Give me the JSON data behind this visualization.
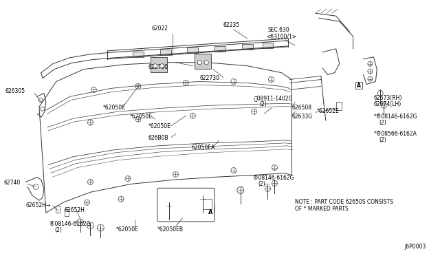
{
  "bg_color": "#ffffff",
  "line_color": "#333333",
  "text_color": "#000000",
  "fig_width": 6.4,
  "fig_height": 3.72,
  "diagram_id": "J6P0003",
  "note_line1": "NOTE : PART CODE 62650S CONSISTS",
  "note_line2": "OF * MARKED PARTS"
}
